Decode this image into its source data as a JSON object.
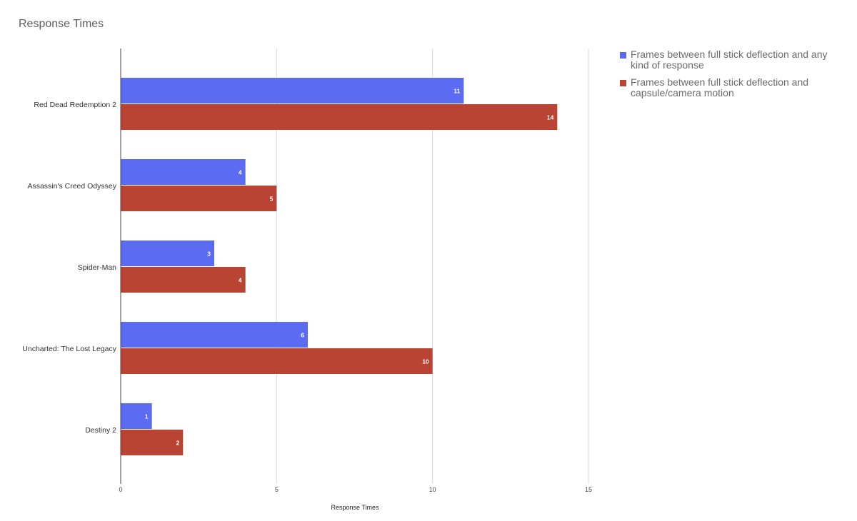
{
  "chart_data": {
    "type": "bar",
    "orientation": "horizontal",
    "title": "Response Times",
    "xlabel": "Response Times",
    "ylabel": "",
    "xlim": [
      0,
      15
    ],
    "xticks": [
      0,
      5,
      10,
      15
    ],
    "grid": true,
    "legend_position": "right",
    "categories": [
      "Red Dead Redemption 2",
      "Assassin's Creed Odyssey",
      "Spider-Man",
      "Uncharted: The Lost Legacy",
      "Destiny 2"
    ],
    "series": [
      {
        "name": "Frames between full stick deflection and any kind of response",
        "color": "#5b6cf2",
        "values": [
          11,
          4,
          3,
          6,
          1
        ]
      },
      {
        "name": "Frames between full stick deflection and capsule/camera motion",
        "color": "#b94434",
        "values": [
          14,
          5,
          4,
          10,
          2
        ]
      }
    ]
  }
}
